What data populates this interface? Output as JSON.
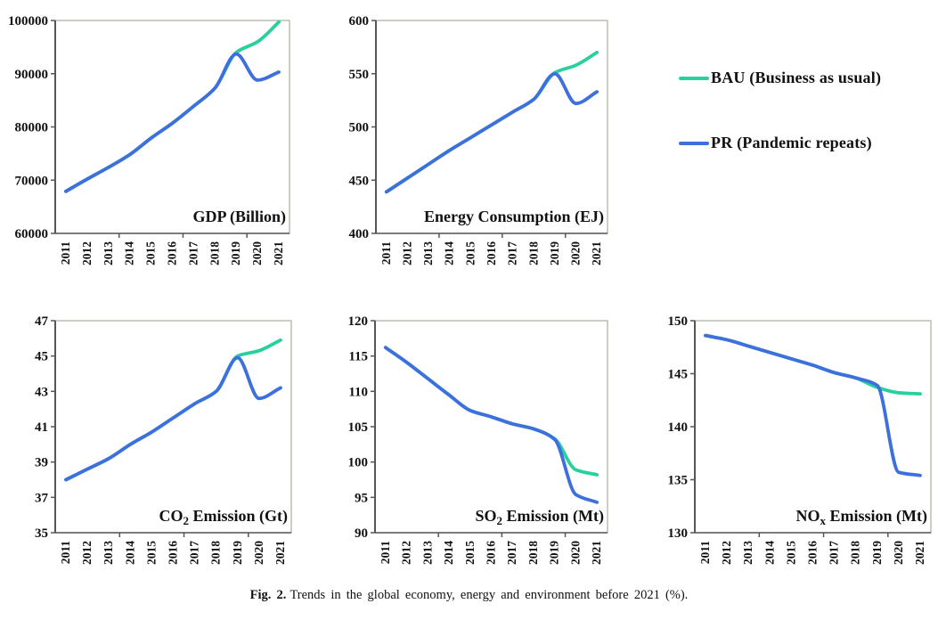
{
  "figure": {
    "caption_label": "Fig. 2.",
    "caption_text": "Trends in the global economy, energy and environment before 2021 (%)."
  },
  "legend": {
    "items": [
      {
        "id": "bau",
        "label": "BAU (Business as usual)",
        "color": "#27d09c"
      },
      {
        "id": "pr",
        "label": "PR (Pandemic repeats)",
        "color": "#3d70dd"
      }
    ]
  },
  "chart_data": [
    {
      "type": "line",
      "title": "GDP (Billion)",
      "title_parts": [
        {
          "text": "GDP (Billion)",
          "sub": false
        }
      ],
      "categories": [
        "2011",
        "2012",
        "2013",
        "2014",
        "2015",
        "2016",
        "2017",
        "2018",
        "2019",
        "2020",
        "2021"
      ],
      "ylim": [
        60000,
        100000
      ],
      "yticks": [
        60000,
        70000,
        80000,
        90000,
        100000
      ],
      "ytick_labels": [
        "60000",
        "70000",
        "80000",
        "90000",
        "100000"
      ],
      "grid": false,
      "legend_position": "outside-right",
      "series": [
        {
          "name": "BAU (Business as usual)",
          "color": "#27d09c",
          "values": [
            67900,
            70200,
            72400,
            74800,
            77900,
            80700,
            83900,
            87300,
            94000,
            96000,
            99700
          ]
        },
        {
          "name": "PR (Pandemic repeats)",
          "color": "#3d70dd",
          "values": [
            67900,
            70200,
            72400,
            74800,
            77900,
            80700,
            83900,
            87300,
            93700,
            88800,
            90300
          ]
        }
      ]
    },
    {
      "type": "line",
      "title": "Energy Consumption (EJ)",
      "title_parts": [
        {
          "text": "Energy Consumption (EJ)",
          "sub": false
        }
      ],
      "categories": [
        "2011",
        "2012",
        "2013",
        "2014",
        "2015",
        "2016",
        "2017",
        "2018",
        "2019",
        "2020",
        "2021"
      ],
      "ylim": [
        400,
        600
      ],
      "yticks": [
        400,
        450,
        500,
        550,
        600
      ],
      "ytick_labels": [
        "400",
        "450",
        "500",
        "550",
        "600"
      ],
      "grid": false,
      "legend_position": "outside-right",
      "series": [
        {
          "name": "BAU (Business as usual)",
          "color": "#27d09c",
          "values": [
            439,
            452,
            465,
            478,
            490,
            502,
            514,
            526,
            551,
            558,
            570
          ]
        },
        {
          "name": "PR (Pandemic repeats)",
          "color": "#3d70dd",
          "values": [
            439,
            452,
            465,
            478,
            490,
            502,
            514,
            526,
            550,
            522,
            533
          ]
        }
      ]
    },
    {
      "type": "line",
      "title": "CO2 Emission (Gt)",
      "title_parts": [
        {
          "text": "CO",
          "sub": false
        },
        {
          "text": "2",
          "sub": true
        },
        {
          "text": " Emission (Gt)",
          "sub": false
        }
      ],
      "categories": [
        "2011",
        "2012",
        "2013",
        "2014",
        "2015",
        "2016",
        "2017",
        "2018",
        "2019",
        "2020",
        "2021"
      ],
      "ylim": [
        35,
        47
      ],
      "yticks": [
        35,
        37,
        39,
        41,
        43,
        45,
        47
      ],
      "ytick_labels": [
        "35",
        "37",
        "39",
        "41",
        "43",
        "45",
        "47"
      ],
      "grid": false,
      "legend_position": "outside-right",
      "series": [
        {
          "name": "BAU (Business as usual)",
          "color": "#27d09c",
          "values": [
            38.0,
            38.6,
            39.2,
            40.0,
            40.7,
            41.5,
            42.3,
            43.0,
            45.0,
            45.3,
            45.9
          ]
        },
        {
          "name": "PR (Pandemic repeats)",
          "color": "#3d70dd",
          "values": [
            38.0,
            38.6,
            39.2,
            40.0,
            40.7,
            41.5,
            42.3,
            43.0,
            44.9,
            42.6,
            43.2
          ]
        }
      ]
    },
    {
      "type": "line",
      "title": "SO2 Emission (Mt)",
      "title_parts": [
        {
          "text": "SO",
          "sub": false
        },
        {
          "text": "2",
          "sub": true
        },
        {
          "text": " Emission (Mt)",
          "sub": false
        }
      ],
      "categories": [
        "2011",
        "2012",
        "2013",
        "2014",
        "2015",
        "2016",
        "2017",
        "2018",
        "2019",
        "2020",
        "2021"
      ],
      "ylim": [
        90,
        120
      ],
      "yticks": [
        90,
        95,
        100,
        105,
        110,
        115,
        120
      ],
      "ytick_labels": [
        "90",
        "95",
        "100",
        "105",
        "110",
        "115",
        "120"
      ],
      "grid": false,
      "legend_position": "outside-right",
      "series": [
        {
          "name": "BAU (Business as usual)",
          "color": "#27d09c",
          "values": [
            116.2,
            114.1,
            111.8,
            109.5,
            107.3,
            106.4,
            105.4,
            104.7,
            103.3,
            98.9,
            98.2
          ]
        },
        {
          "name": "PR (Pandemic repeats)",
          "color": "#3d70dd",
          "values": [
            116.2,
            114.1,
            111.8,
            109.5,
            107.3,
            106.4,
            105.4,
            104.7,
            103.2,
            95.4,
            94.3
          ]
        }
      ]
    },
    {
      "type": "line",
      "title": "NOx Emission (Mt)",
      "title_parts": [
        {
          "text": "NO",
          "sub": false
        },
        {
          "text": "x",
          "sub": true
        },
        {
          "text": " Emission (Mt)",
          "sub": false
        }
      ],
      "categories": [
        "2011",
        "2012",
        "2013",
        "2014",
        "2015",
        "2016",
        "2017",
        "2018",
        "2019",
        "2020",
        "2021"
      ],
      "ylim": [
        130,
        150
      ],
      "yticks": [
        130,
        135,
        140,
        145,
        150
      ],
      "ytick_labels": [
        "130",
        "135",
        "140",
        "145",
        "150"
      ],
      "grid": false,
      "legend_position": "outside-right",
      "series": [
        {
          "name": "BAU (Business as usual)",
          "color": "#27d09c",
          "values": [
            148.6,
            148.2,
            147.6,
            147.0,
            146.4,
            145.8,
            145.1,
            144.6,
            143.7,
            143.2,
            143.1
          ]
        },
        {
          "name": "PR (Pandemic repeats)",
          "color": "#3d70dd",
          "values": [
            148.6,
            148.2,
            147.6,
            147.0,
            146.4,
            145.8,
            145.1,
            144.6,
            143.9,
            135.7,
            135.4
          ]
        }
      ]
    }
  ]
}
